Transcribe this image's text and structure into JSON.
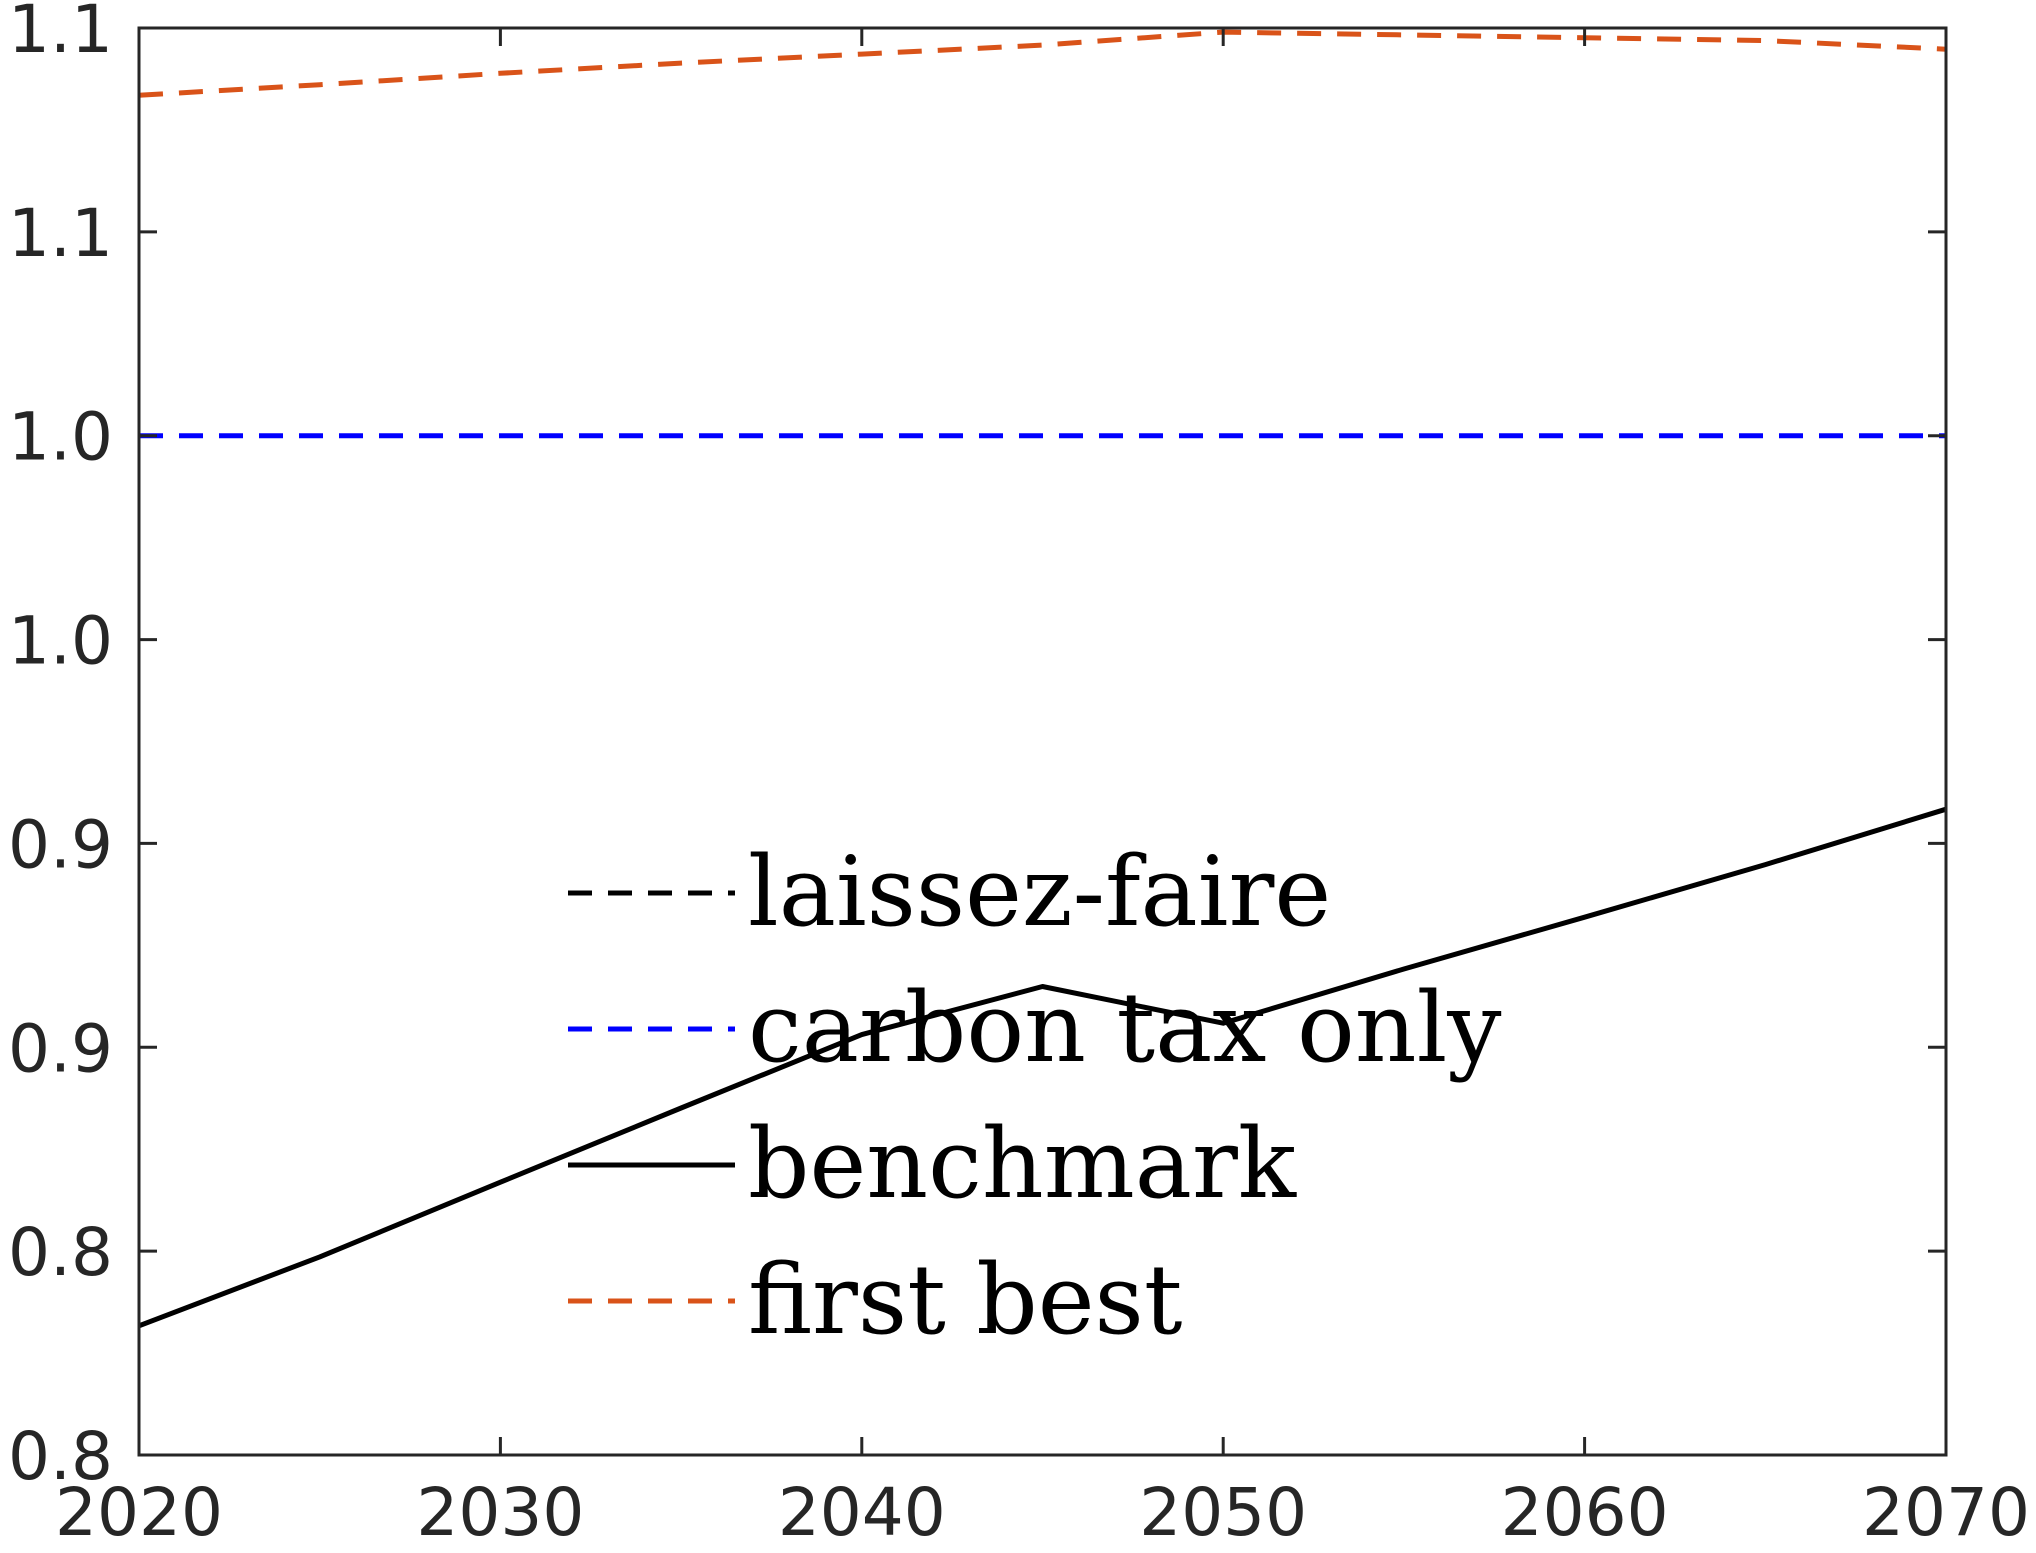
{
  "chart_data": {
    "type": "line",
    "title": "",
    "xlabel": "",
    "ylabel": "",
    "xlim": [
      2020,
      2070
    ],
    "ylim": [
      0.8,
      1.15
    ],
    "x_ticks": [
      2020,
      2030,
      2040,
      2050,
      2060,
      2070
    ],
    "x_tick_labels": [
      "2020",
      "2030",
      "2040",
      "2050",
      "2060",
      "2070"
    ],
    "y_ticks": [
      0.8,
      0.85,
      0.9,
      0.95,
      1.0,
      1.05,
      1.1,
      1.15
    ],
    "y_tick_labels": [
      "0.8",
      "0.8",
      "0.9",
      "0.9",
      "1.0",
      "1.0",
      "1.1",
      "1.1"
    ],
    "grid": false,
    "legend": {
      "placement": "center",
      "entries": [
        {
          "name": "laissez-faire",
          "color": "#000000",
          "style": "dashed"
        },
        {
          "name": "carbon tax only",
          "color": "#0000ff",
          "style": "dashed"
        },
        {
          "name": "benchmark",
          "color": "#000000",
          "style": "solid"
        },
        {
          "name": "first best",
          "color": "#d95319",
          "style": "dashed"
        }
      ]
    },
    "series": [
      {
        "name": "laissez-faire",
        "color": "#000000",
        "style": "dashed",
        "x": [],
        "y": []
      },
      {
        "name": "carbon tax only",
        "color": "#0000ff",
        "style": "dashed",
        "x": [
          2020,
          2070
        ],
        "y": [
          1.05,
          1.05
        ]
      },
      {
        "name": "benchmark",
        "color": "#000000",
        "style": "solid",
        "x": [
          2020,
          2025,
          2030,
          2035,
          2040,
          2045,
          2050,
          2055,
          2060,
          2065,
          2070
        ],
        "y": [
          0.8317,
          0.8486,
          0.8669,
          0.8851,
          0.9031,
          0.9149,
          0.9059,
          0.9192,
          0.9319,
          0.9448,
          0.9584
        ]
      },
      {
        "name": "first best",
        "color": "#d95319",
        "style": "dashed",
        "x": [
          2020,
          2025,
          2030,
          2035,
          2040,
          2045,
          2050,
          2055,
          2060,
          2065,
          2070
        ],
        "y": [
          1.1335,
          1.1361,
          1.1389,
          1.1414,
          1.1436,
          1.1458,
          1.149,
          1.1483,
          1.1476,
          1.1469,
          1.1448
        ]
      }
    ]
  }
}
